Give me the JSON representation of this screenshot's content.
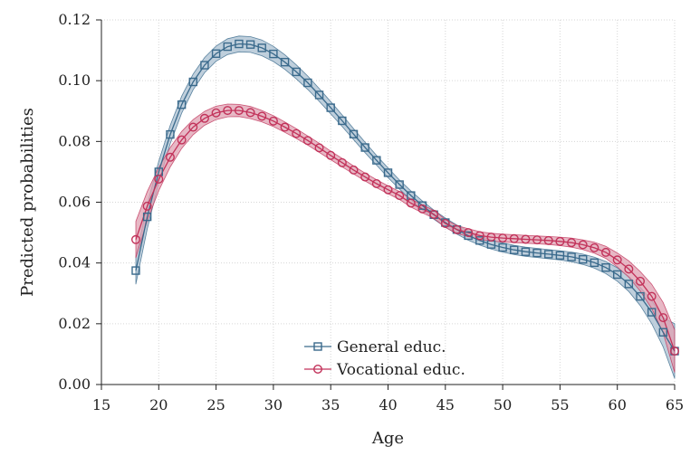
{
  "chart_data": {
    "type": "line",
    "title": "",
    "xlabel": "Age",
    "ylabel": "Predicted probabilities",
    "xlim": [
      15,
      65
    ],
    "ylim": [
      0,
      0.12
    ],
    "x_ticks": [
      15,
      20,
      25,
      30,
      35,
      40,
      45,
      50,
      55,
      60,
      65
    ],
    "x_tick_labels": [
      "15",
      "20",
      "25",
      "30",
      "35",
      "40",
      "45",
      "50",
      "55",
      "60",
      "65"
    ],
    "y_ticks": [
      0,
      0.02,
      0.04,
      0.06,
      0.08,
      0.1,
      0.12
    ],
    "y_tick_labels": [
      "0.00",
      "0.02",
      "0.04",
      "0.06",
      "0.08",
      "0.10",
      "0.12"
    ],
    "grid": true,
    "legend_position": "bottom-center",
    "x": [
      18,
      19,
      20,
      21,
      22,
      23,
      24,
      25,
      26,
      27,
      28,
      29,
      30,
      31,
      32,
      33,
      34,
      35,
      36,
      37,
      38,
      39,
      40,
      41,
      42,
      43,
      44,
      45,
      46,
      47,
      48,
      49,
      50,
      51,
      52,
      53,
      54,
      55,
      56,
      57,
      58,
      59,
      60,
      61,
      62,
      63,
      64,
      65
    ],
    "series": [
      {
        "name": "General educ.",
        "color": "#3a6a8c",
        "fill": "#a9bfd0",
        "marker": "square",
        "values": [
          0.0375,
          0.0552,
          0.07,
          0.0823,
          0.0921,
          0.0996,
          0.1051,
          0.1089,
          0.1112,
          0.1121,
          0.1119,
          0.1108,
          0.1088,
          0.1061,
          0.1029,
          0.0993,
          0.0953,
          0.0911,
          0.0868,
          0.0824,
          0.078,
          0.0738,
          0.0697,
          0.0658,
          0.0622,
          0.0589,
          0.0559,
          0.0533,
          0.051,
          0.049,
          0.0474,
          0.0461,
          0.0451,
          0.0443,
          0.0437,
          0.0433,
          0.0429,
          0.0425,
          0.042,
          0.0412,
          0.0401,
          0.0385,
          0.0362,
          0.0331,
          0.029,
          0.0238,
          0.0172,
          0.011
        ],
        "ci_half_width": [
          0.0045,
          0.004,
          0.0035,
          0.003,
          0.0028,
          0.0026,
          0.0025,
          0.0025,
          0.0026,
          0.0026,
          0.0026,
          0.0026,
          0.0025,
          0.0024,
          0.0023,
          0.0022,
          0.0021,
          0.002,
          0.0019,
          0.0018,
          0.0017,
          0.0016,
          0.0016,
          0.0015,
          0.0015,
          0.0015,
          0.0015,
          0.0015,
          0.0015,
          0.0015,
          0.0015,
          0.0015,
          0.0015,
          0.0015,
          0.0015,
          0.0015,
          0.0015,
          0.0015,
          0.0016,
          0.0017,
          0.0018,
          0.002,
          0.0022,
          0.0025,
          0.003,
          0.0038,
          0.0048,
          0.009
        ]
      },
      {
        "name": "Vocational educ.",
        "color": "#c2325a",
        "fill": "#dfa0b2",
        "marker": "circle",
        "values": [
          0.0477,
          0.0587,
          0.0676,
          0.0748,
          0.0805,
          0.0847,
          0.0876,
          0.0894,
          0.0902,
          0.0902,
          0.0895,
          0.0883,
          0.0867,
          0.0847,
          0.0826,
          0.0803,
          0.0779,
          0.0754,
          0.073,
          0.0706,
          0.0683,
          0.0661,
          0.0641,
          0.0622,
          0.0597,
          0.0578,
          0.056,
          0.053,
          0.051,
          0.05,
          0.049,
          0.0485,
          0.0482,
          0.048,
          0.0478,
          0.0476,
          0.0474,
          0.0471,
          0.0467,
          0.046,
          0.045,
          0.0435,
          0.041,
          0.038,
          0.034,
          0.029,
          0.022,
          0.011
        ],
        "ci_half_width": [
          0.006,
          0.0048,
          0.0038,
          0.0032,
          0.0028,
          0.0025,
          0.0023,
          0.0022,
          0.0021,
          0.002,
          0.002,
          0.0019,
          0.0018,
          0.0017,
          0.0016,
          0.0015,
          0.0015,
          0.0014,
          0.0014,
          0.0013,
          0.0013,
          0.0013,
          0.0013,
          0.0013,
          0.0013,
          0.0013,
          0.0013,
          0.0013,
          0.0013,
          0.0013,
          0.0013,
          0.0013,
          0.0013,
          0.0013,
          0.0013,
          0.0013,
          0.0013,
          0.0014,
          0.0015,
          0.0016,
          0.0018,
          0.002,
          0.0023,
          0.0027,
          0.0032,
          0.004,
          0.005,
          0.007
        ]
      }
    ]
  }
}
